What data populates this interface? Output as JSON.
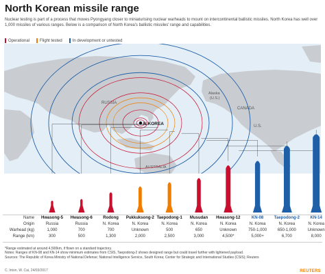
{
  "title": "North Korean missile range",
  "intro": "Nuclear testing is part of a process that moves Pyongyang closer to miniaturising nuclear warheads to mount on intercontinental ballistic missiles. North Korea has well over 1,000 missiles of various ranges. Below is a comparison of North Korea's ballistic missiles' range and capabilities.",
  "legend": [
    {
      "label": "Operational",
      "color": "#c8102e"
    },
    {
      "label": "Flight tested",
      "color": "#f07d00"
    },
    {
      "label": "In development or untested",
      "color": "#1f5fa8"
    }
  ],
  "map_labels": {
    "russia": "RUSSIA",
    "nkorea": "N.KOREA",
    "alaska": "Alaska\n(U.S.)",
    "canada": "CANADA",
    "us": "U.S.",
    "australia": "AUSTRALIA"
  },
  "table_labels": {
    "name": "Name",
    "origin": "Origin",
    "warhead": "Warhead (kg)",
    "range": "Range (km)"
  },
  "chart_data": {
    "type": "table",
    "status_colors": {
      "operational": "#c8102e",
      "flight_tested": "#f07d00",
      "development": "#1f5fa8"
    },
    "missiles": [
      {
        "name": "Hwasong-5",
        "origin": "Russia",
        "warhead": "1,000",
        "range": "300",
        "range_km": 300,
        "status": "operational"
      },
      {
        "name": "Hwasong-6",
        "origin": "Russia",
        "warhead": "700",
        "range": "500",
        "range_km": 500,
        "status": "operational"
      },
      {
        "name": "Rodong",
        "origin": "N. Korea",
        "warhead": "700",
        "range": "1,300",
        "range_km": 1300,
        "status": "operational"
      },
      {
        "name": "Pukkuksong-2",
        "origin": "N. Korea",
        "warhead": "Unknown",
        "range": "2,000",
        "range_km": 2000,
        "status": "flight_tested"
      },
      {
        "name": "Taepodong-1",
        "origin": "N. Korea",
        "warhead": "500",
        "range": "2,500",
        "range_km": 2500,
        "status": "flight_tested"
      },
      {
        "name": "Musudan",
        "origin": "N. Korea",
        "warhead": "650",
        "range": "3,000",
        "range_km": 3000,
        "status": "operational"
      },
      {
        "name": "Hwasong-12",
        "origin": "N. Korea",
        "warhead": "Unknown",
        "range": "4,500*",
        "range_km": 4500,
        "status": "operational"
      },
      {
        "name": "KN-08",
        "origin": "N. Korea",
        "warhead": "750-1,000",
        "range": "5,000+",
        "range_km": 5000,
        "status": "development"
      },
      {
        "name": "Taepodong-2",
        "origin": "N. Korea",
        "warhead": "650-1,000",
        "range": "6,700",
        "range_km": 6700,
        "status": "development"
      },
      {
        "name": "KN-14",
        "origin": "N. Korea",
        "warhead": "Unknown",
        "range": "8,000",
        "range_km": 8000,
        "status": "development"
      }
    ]
  },
  "notes": [
    "*Range estimated at around 4,500km, if flown on a standard trajectory.",
    "Notes: Ranges of KN-08 and KN-14 show minimum estimates from CSIS, Taepodong-2 shows designed range but could travel further with lightened payload.",
    "Sources: The Republic of Korea Ministry of National Defense; National Intelligence Service, South Korea; Center for Strategic and International Studies (CSIS); Reuters"
  ],
  "credit": "C. Inton, W. Cai, 24/03/2017",
  "brand": "REUTERS"
}
